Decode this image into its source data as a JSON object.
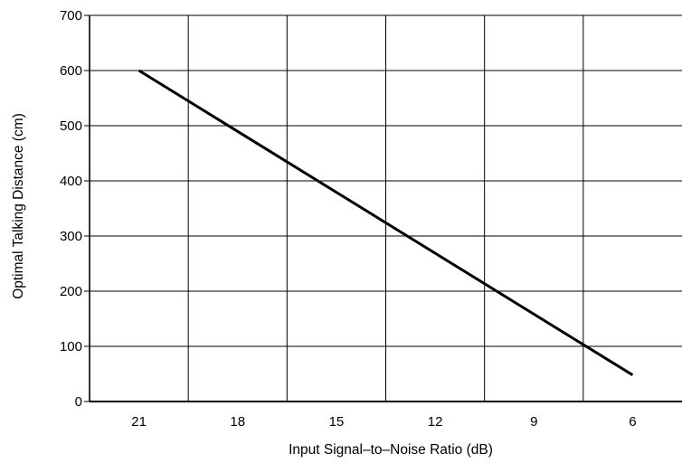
{
  "chart_data": {
    "type": "line",
    "title": "",
    "xlabel": "Input Signal–to–Noise Ratio (dB)",
    "ylabel": "Optimal Talking Distance (cm)",
    "x_axis_reversed": true,
    "x_ticks": [
      21,
      18,
      15,
      12,
      9,
      6
    ],
    "y_ticks": [
      0,
      100,
      200,
      300,
      400,
      500,
      600,
      700
    ],
    "ylim": [
      0,
      700
    ],
    "grid": true,
    "legend": "none",
    "series": [
      {
        "x": [
          21,
          6
        ],
        "y": [
          600,
          48
        ]
      }
    ],
    "colors": {
      "line": "#000000",
      "grid": "#000000",
      "axis": "#000000"
    }
  }
}
